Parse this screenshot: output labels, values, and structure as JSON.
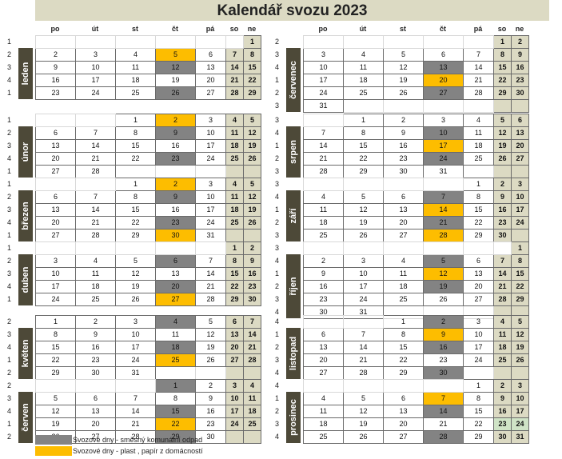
{
  "title": "Kalendář svozu 2023",
  "weekdays": [
    "po",
    "út",
    "st",
    "čt",
    "pá",
    "so",
    "ne"
  ],
  "months": [
    {
      "name": "leden",
      "offset": 6,
      "days": 31,
      "gray": [
        12,
        26
      ],
      "yellow": [
        5
      ],
      "counts": [
        "1",
        "2",
        "3",
        "4",
        "1"
      ]
    },
    {
      "name": "únor",
      "offset": 2,
      "days": 28,
      "gray": [
        9,
        23
      ],
      "yellow": [
        2
      ],
      "counts": [
        "1",
        "2",
        "3",
        "4",
        "1"
      ]
    },
    {
      "name": "březen",
      "offset": 2,
      "days": 31,
      "gray": [
        9,
        23
      ],
      "yellow": [
        2,
        30
      ],
      "counts": [
        "1",
        "2",
        "3",
        "4",
        "1"
      ]
    },
    {
      "name": "duben",
      "offset": 5,
      "days": 30,
      "gray": [
        6,
        20
      ],
      "yellow": [
        27
      ],
      "counts": [
        "1",
        "2",
        "3",
        "4",
        "1"
      ]
    },
    {
      "name": "květen",
      "offset": 0,
      "days": 31,
      "gray": [
        4,
        18
      ],
      "yellow": [
        25
      ],
      "counts": [
        "2",
        "3",
        "4",
        "1",
        "2"
      ]
    },
    {
      "name": "červen",
      "offset": 3,
      "days": 30,
      "gray": [
        1,
        15,
        29
      ],
      "yellow": [
        22
      ],
      "counts": [
        "2",
        "3",
        "4",
        "1",
        "2"
      ]
    },
    {
      "name": "červenec",
      "offset": 5,
      "days": 31,
      "gray": [
        13,
        27
      ],
      "yellow": [
        20
      ],
      "counts": [
        "2",
        "3",
        "4",
        "1",
        "2",
        "3"
      ]
    },
    {
      "name": "srpen",
      "offset": 1,
      "days": 31,
      "gray": [
        10,
        24
      ],
      "yellow": [
        17
      ],
      "counts": [
        "3",
        "4",
        "1",
        "2",
        "3"
      ]
    },
    {
      "name": "září",
      "offset": 4,
      "days": 30,
      "gray": [
        7,
        21
      ],
      "yellow": [
        14,
        28
      ],
      "counts": [
        "3",
        "4",
        "1",
        "2",
        "3"
      ]
    },
    {
      "name": "říjen",
      "offset": 6,
      "days": 31,
      "gray": [
        5,
        19
      ],
      "yellow": [
        12
      ],
      "counts": [
        "3",
        "4",
        "1",
        "2",
        "3",
        "4"
      ]
    },
    {
      "name": "listopad",
      "offset": 2,
      "days": 30,
      "gray": [
        2,
        16,
        30
      ],
      "yellow": [
        9
      ],
      "counts": [
        "4",
        "1",
        "2",
        "3",
        "4"
      ]
    },
    {
      "name": "prosinec",
      "offset": 4,
      "days": 31,
      "gray": [
        14,
        28
      ],
      "yellow": [
        7
      ],
      "green": [
        23,
        24
      ],
      "counts": [
        "4",
        "1",
        "2",
        "3",
        "4"
      ]
    }
  ],
  "legend": [
    {
      "color": "#838383",
      "label": "Svozové dny - směsný komunální odpad"
    },
    {
      "color": "#fdbd00",
      "label": "Svozové dny - plast , papír z domácností"
    }
  ]
}
